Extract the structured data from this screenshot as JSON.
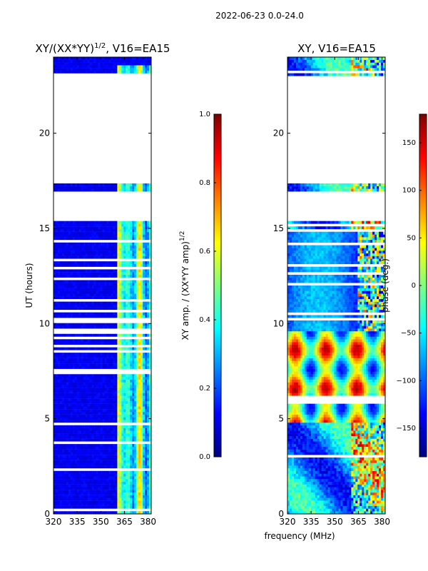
{
  "figure": {
    "suptitle": "2022-06-23 0.0-24.0",
    "shared_xlabel": "frequency (MHz)"
  },
  "colors": {
    "jet": [
      "#00007f",
      "#0000ff",
      "#0080ff",
      "#00ffff",
      "#80ff80",
      "#ffff00",
      "#ff8000",
      "#ff0000",
      "#7f0000"
    ],
    "background": "#ffffff",
    "axis": "#000000"
  },
  "chart_data": [
    {
      "type": "heatmap",
      "panel": "left",
      "title": "XY/(XX*YY)",
      "title_superscript": "1/2",
      "title_suffix": ", V16=EA15",
      "xlabel": "",
      "ylabel": "UT (hours)",
      "xlim": [
        320,
        382
      ],
      "ylim": [
        0,
        24
      ],
      "xticks": [
        320,
        335,
        350,
        365,
        380
      ],
      "yticks": [
        0,
        5,
        10,
        15,
        20
      ],
      "colorbar": {
        "label": "XY amp. / (XX*YY amp)",
        "label_superscript": "1/2",
        "range": [
          0.0,
          1.0
        ],
        "ticks": [
          0.0,
          0.2,
          0.4,
          0.6,
          0.8,
          1.0
        ],
        "tick_labels": [
          "0.0",
          "0.2",
          "0.4",
          "0.6",
          "0.8",
          "1.0"
        ]
      },
      "flagged_time_ranges_hours": [
        [
          22.4,
          23.0
        ],
        [
          21.1,
          22.4
        ],
        [
          17.4,
          21.1
        ],
        [
          15.4,
          17.0
        ]
      ],
      "value_description": "Mostly ~0.05 (dark blue); elevated 0.3-0.6 in band 360-380 MHz, occasional stripes near 365, 370, 378 MHz"
    },
    {
      "type": "heatmap",
      "panel": "right",
      "title": "XY, V16=EA15",
      "xlabel": "",
      "ylabel": "",
      "xlim": [
        320,
        382
      ],
      "ylim": [
        0,
        24
      ],
      "xticks": [
        320,
        335,
        350,
        365,
        380
      ],
      "yticks": [
        0,
        5,
        10,
        15,
        20
      ],
      "colorbar": {
        "label": "phase (deg.)",
        "range": [
          -180,
          180
        ],
        "ticks": [
          -150,
          -100,
          -50,
          0,
          50,
          100,
          150
        ],
        "tick_labels": [
          "−150",
          "−100",
          "−50",
          "0",
          "50",
          "100",
          "150"
        ]
      },
      "flagged_time_ranges_hours": [
        [
          22.4,
          23.0
        ],
        [
          21.1,
          22.4
        ],
        [
          17.4,
          21.1
        ],
        [
          15.4,
          17.0
        ]
      ],
      "value_description": "Phase wraps in frequency across 320-382 MHz; banded yellow/red/blue stripes in 5-10 h, blue/red structure elsewhere"
    }
  ]
}
